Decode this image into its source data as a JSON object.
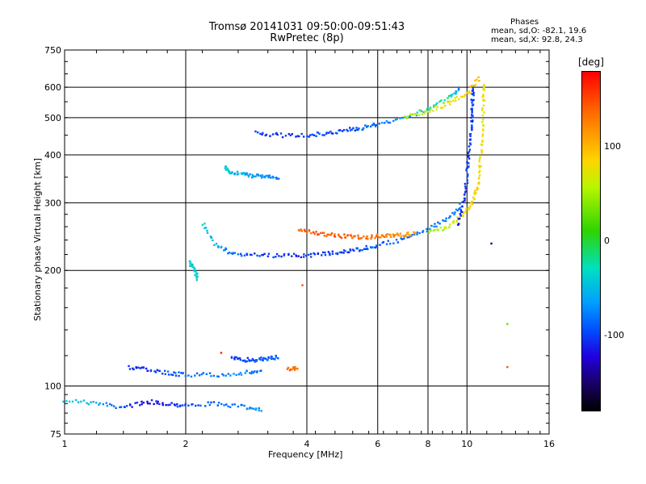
{
  "header": {
    "title_line1": "Tromsø 20141031 09:50:00-09:51:43",
    "title_line2": "RwPretec (8p)",
    "phases_title": "Phases",
    "phases_o": "mean, sd,O: -82.1, 19.6",
    "phases_x": "mean, sd,X:  92.8, 24.3"
  },
  "colorbar": {
    "unit_label": "[deg]",
    "ticks": [
      "100",
      "0",
      "-100"
    ],
    "tick_values": [
      100,
      0,
      -100
    ],
    "range": [
      -180,
      180
    ]
  },
  "chart_data": {
    "type": "scatter",
    "xlabel": "Frequency [MHz]",
    "ylabel": "Stationary phase Virtual Height [km]",
    "x_scale": "log",
    "y_scale": "log",
    "xlim": [
      1,
      16
    ],
    "ylim": [
      75,
      750
    ],
    "grid": true,
    "x_ticks": [
      1,
      2,
      4,
      6,
      8,
      10,
      16
    ],
    "x_tick_labels": [
      "1",
      "2",
      "4",
      "6",
      "8",
      "10",
      "16"
    ],
    "y_ticks": [
      75,
      100,
      200,
      300,
      400,
      500,
      600,
      750
    ],
    "y_tick_labels": [
      "75",
      "100",
      "200",
      "300",
      "400",
      "500",
      "600",
      "750"
    ],
    "color_quantity": "phase [deg]",
    "traces": [
      {
        "x": [
          1.0,
          1.2,
          1.4,
          1.6,
          1.8,
          2.0,
          2.4,
          2.8,
          3.1
        ],
        "y": [
          92,
          90,
          88,
          91,
          90,
          89,
          90,
          88,
          87
        ],
        "phase": [
          -40,
          -60,
          -100,
          -120,
          -110,
          -100,
          -90,
          -80,
          -70
        ]
      },
      {
        "x": [
          1.45,
          1.6,
          1.8,
          2.0,
          2.4,
          2.8,
          3.1
        ],
        "y": [
          112,
          110,
          108,
          107,
          107,
          108,
          110
        ],
        "phase": [
          -110,
          -105,
          -95,
          -85,
          -80,
          -75,
          -90
        ]
      },
      {
        "x": [
          2.6,
          2.8,
          3.0,
          3.2,
          3.4
        ],
        "y": [
          118,
          117,
          117,
          118,
          119
        ],
        "phase": [
          -100,
          -100,
          -90,
          -90,
          -85
        ]
      },
      {
        "x": [
          3.6,
          3.8
        ],
        "y": [
          111,
          111
        ],
        "phase": [
          140,
          140
        ]
      },
      {
        "x": [
          2.05,
          2.1,
          2.15
        ],
        "y": [
          210,
          200,
          190
        ],
        "phase": [
          -40,
          -40,
          -40
        ]
      },
      {
        "x": [
          2.2,
          2.4,
          2.6,
          3.0,
          3.5,
          4.0,
          4.5,
          5.0,
          5.5,
          6.0,
          7.0,
          8.0,
          9.0,
          9.8
        ],
        "y": [
          265,
          230,
          222,
          219,
          218,
          219,
          221,
          224,
          228,
          232,
          242,
          255,
          275,
          300
        ],
        "phase": [
          -40,
          -60,
          -80,
          -100,
          -105,
          -105,
          -100,
          -100,
          -95,
          -90,
          -90,
          -80,
          -80,
          -80
        ]
      },
      {
        "x": [
          3.8,
          4.2,
          4.6,
          5.0,
          5.5,
          6.0,
          6.5,
          7.0,
          7.5
        ],
        "y": [
          255,
          250,
          247,
          245,
          244,
          245,
          246,
          248,
          250
        ],
        "phase": [
          140,
          150,
          140,
          150,
          130,
          140,
          130,
          120,
          110
        ]
      },
      {
        "x": [
          8.0,
          9.0,
          9.8,
          10.3,
          10.6,
          10.8,
          10.9,
          11.0,
          11.0
        ],
        "y": [
          250,
          260,
          280,
          300,
          330,
          380,
          450,
          550,
          620
        ],
        "phase": [
          40,
          60,
          80,
          90,
          90,
          80,
          80,
          80,
          80
        ]
      },
      {
        "x": [
          9.5,
          9.8,
          10.0,
          10.1,
          10.2,
          10.3,
          10.3,
          10.4
        ],
        "y": [
          260,
          300,
          350,
          400,
          450,
          500,
          550,
          600
        ],
        "phase": [
          -110,
          -110,
          -100,
          -100,
          -100,
          -100,
          -100,
          -100
        ]
      },
      {
        "x": [
          2.5,
          2.6,
          2.8,
          3.0,
          3.2,
          3.4
        ],
        "y": [
          370,
          360,
          355,
          352,
          350,
          348
        ],
        "phase": [
          -40,
          -50,
          -60,
          -70,
          -75,
          -80
        ]
      },
      {
        "x": [
          3.0,
          3.4,
          4.0,
          4.5,
          5.0,
          5.5,
          6.0,
          7.0,
          8.0,
          9.0,
          9.6
        ],
        "y": [
          455,
          450,
          450,
          455,
          465,
          470,
          480,
          500,
          525,
          560,
          600
        ],
        "phase": [
          -100,
          -105,
          -105,
          -100,
          -100,
          -90,
          -80,
          -70,
          -40,
          -10,
          -80
        ]
      },
      {
        "x": [
          7.0,
          8.0,
          9.0,
          10.0,
          10.8
        ],
        "y": [
          500,
          520,
          545,
          575,
          640
        ],
        "phase": [
          60,
          70,
          80,
          90,
          110
        ]
      }
    ],
    "outliers": [
      {
        "x": 3.9,
        "y": 183,
        "phase": 150
      },
      {
        "x": 11.5,
        "y": 235,
        "phase": -150
      },
      {
        "x": 12.6,
        "y": 145,
        "phase": 30
      },
      {
        "x": 12.6,
        "y": 112,
        "phase": 150
      },
      {
        "x": 2.45,
        "y": 122,
        "phase": 170
      }
    ]
  }
}
